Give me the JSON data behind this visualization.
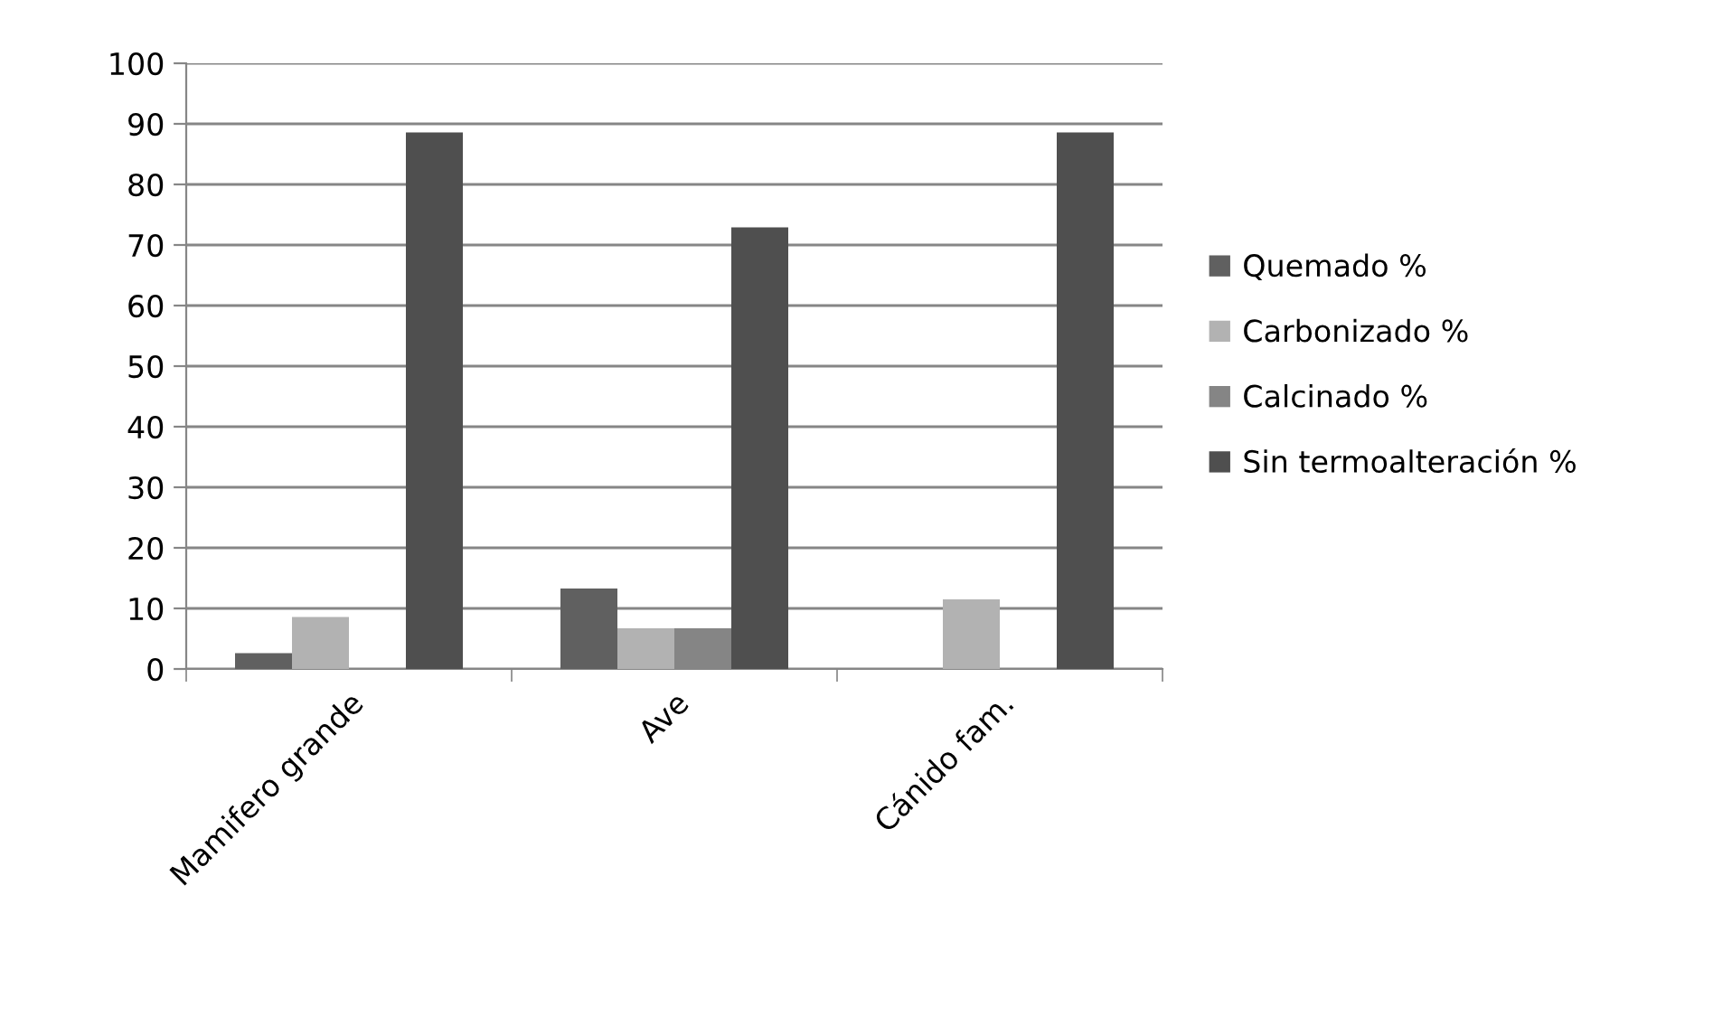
{
  "chart_data": {
    "type": "bar",
    "categories": [
      "Mamifero grande",
      "Ave",
      "Cánido fam."
    ],
    "series": [
      {
        "name": "Quemado %",
        "color": "#606060",
        "values": [
          2.6,
          13.3,
          0
        ]
      },
      {
        "name": "Carbonizado %",
        "color": "#b2b2b2",
        "values": [
          8.6,
          6.7,
          11.5
        ]
      },
      {
        "name": "Calcinado %",
        "color": "#858585",
        "values": [
          0,
          6.7,
          0
        ]
      },
      {
        "name": "Sin termoalteración %",
        "color": "#4f4f4f",
        "values": [
          88.6,
          72.9,
          88.6
        ]
      }
    ],
    "ylim": [
      0,
      100
    ],
    "yticks": [
      0,
      10,
      20,
      30,
      40,
      50,
      60,
      70,
      80,
      90,
      100
    ],
    "grid": "y",
    "legend": "right"
  }
}
